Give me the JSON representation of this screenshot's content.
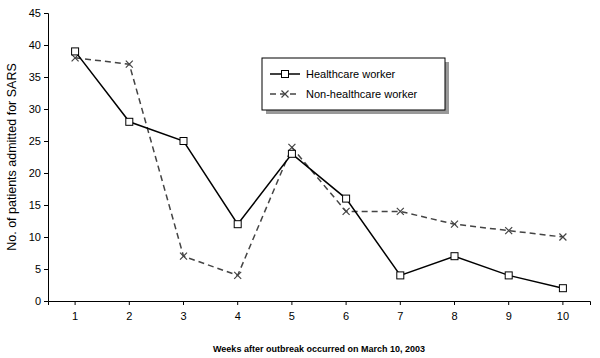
{
  "chart_data": {
    "type": "line",
    "x_label": "Weeks after outbreak occurred on March 10, 2003",
    "y_label": "No. of patients admitted for SARS",
    "categories": [
      "1",
      "2",
      "3",
      "4",
      "5",
      "6",
      "7",
      "8",
      "9",
      "10"
    ],
    "series": [
      {
        "name": "Healthcare worker",
        "color": "#000000",
        "marker": "square",
        "line_style": "solid",
        "values": [
          39,
          28,
          25,
          12,
          23,
          16,
          4,
          7,
          4,
          2
        ]
      },
      {
        "name": "Non-healthcare worker",
        "color": "#444444",
        "marker": "x",
        "line_style": "dashed",
        "values": [
          38,
          37,
          7,
          4,
          24,
          14,
          14,
          12,
          11,
          10
        ]
      }
    ],
    "ylim": [
      0,
      45
    ],
    "yticks": [
      0,
      5,
      10,
      15,
      20,
      25,
      30,
      35,
      40,
      45
    ],
    "grid": false,
    "legend": "top"
  }
}
